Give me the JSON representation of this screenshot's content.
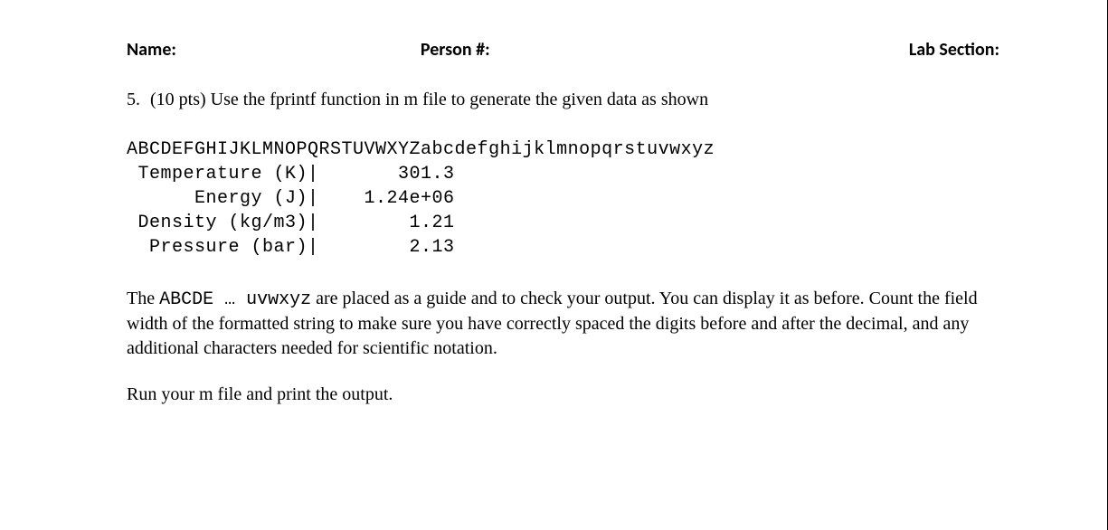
{
  "header": {
    "name_label": "Name:",
    "person_label": "Person #:",
    "lab_label": "Lab Section:"
  },
  "question": {
    "number": "5.",
    "points": "(10 pts)",
    "text": "Use the fprintf function in m file to generate the given data as shown"
  },
  "output": {
    "ruler": "ABCDEFGHIJKLMNOPQRSTUVWXYZabcdefghijklmnopqrstuvwxyz",
    "rows": [
      {
        "label": " Temperature (K)|",
        "value": "       301.3"
      },
      {
        "label": "      Energy (J)|",
        "value": "    1.24e+06"
      },
      {
        "label": " Density (kg/m3)|",
        "value": "        1.21"
      },
      {
        "label": "  Pressure (bar)|",
        "value": "        2.13"
      }
    ]
  },
  "explanation": {
    "mono_prefix": "ABCDE … uvwxyz",
    "the_word": "The ",
    "text_after": " are placed as a guide and to check your output. You can display it as before. Count the field width of the formatted string to make sure you have correctly spaced the digits before and after the decimal, and any additional characters needed for scientific notation."
  },
  "final": "Run your m file and print the output."
}
